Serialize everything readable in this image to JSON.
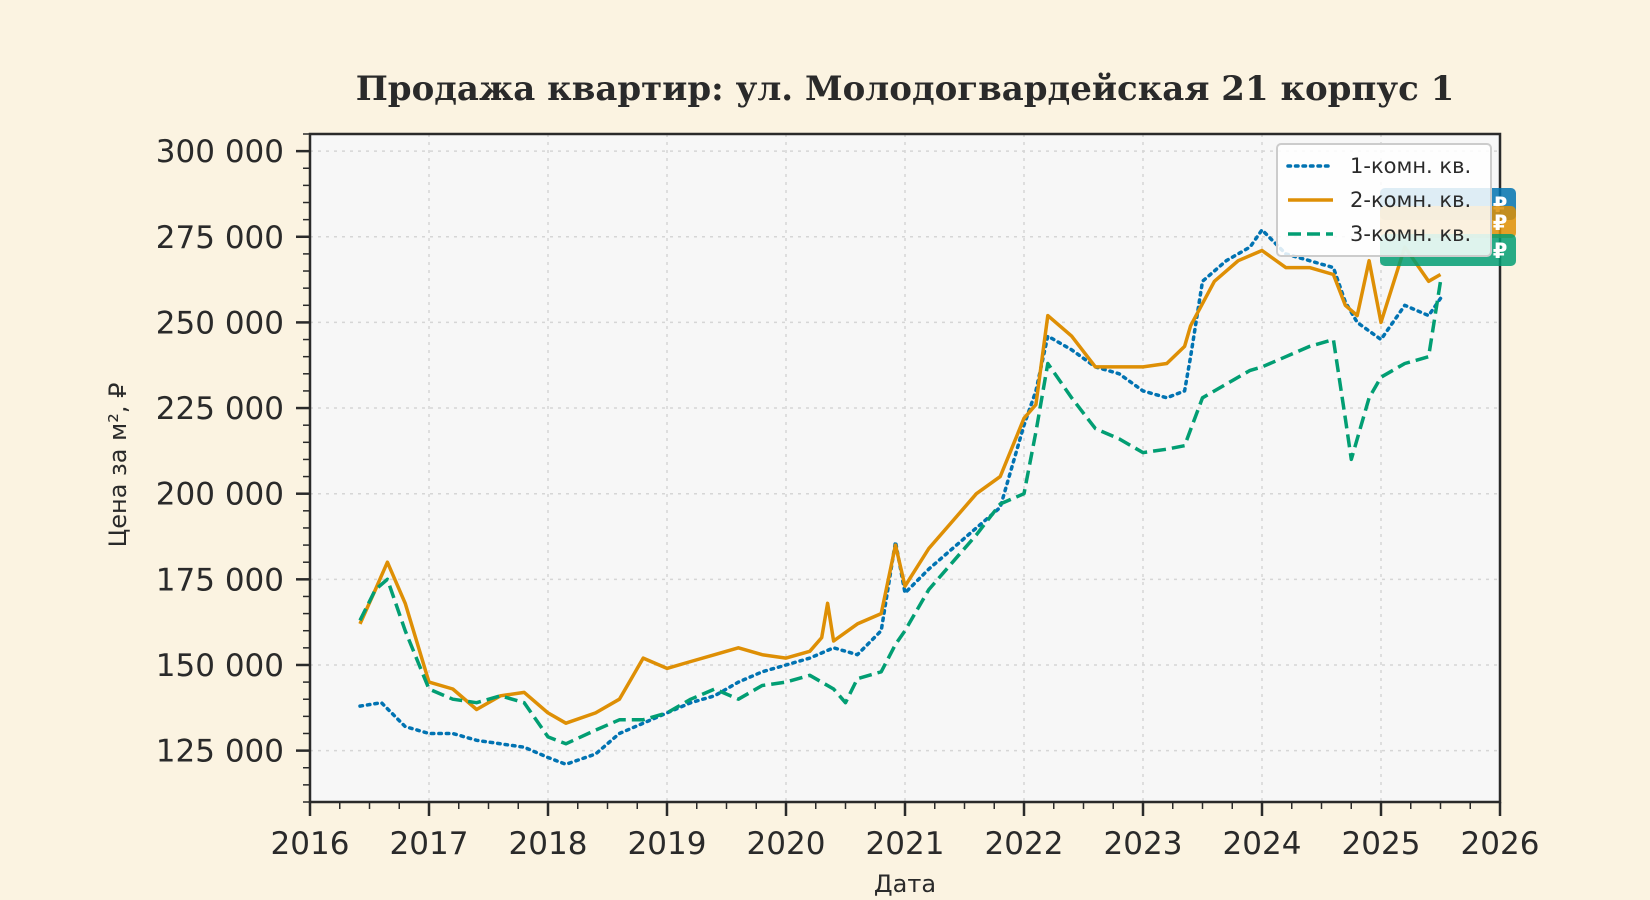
{
  "chart_data": {
    "type": "line",
    "title": "Продажа квартир: ул. Молодогвардейская 21 корпус 1",
    "xlabel": "Дата",
    "ylabel": "Цена за м², ₽",
    "xlim": [
      2016,
      2026
    ],
    "ylim": [
      110000,
      305000
    ],
    "x_ticks": [
      "2016",
      "2017",
      "2018",
      "2019",
      "2020",
      "2021",
      "2022",
      "2023",
      "2024",
      "2025",
      "2026"
    ],
    "y_ticks": [
      {
        "value": 125000,
        "label": "125 000"
      },
      {
        "value": 150000,
        "label": "150 000"
      },
      {
        "value": 175000,
        "label": "175 000"
      },
      {
        "value": 200000,
        "label": "200 000"
      },
      {
        "value": 225000,
        "label": "225 000"
      },
      {
        "value": 250000,
        "label": "250 000"
      },
      {
        "value": 275000,
        "label": "275 000"
      },
      {
        "value": 300000,
        "label": "300 000"
      }
    ],
    "grid": true,
    "legend_position": "top-right",
    "end_marker_symbol": "₽",
    "series": [
      {
        "name": "1-комн. кв.",
        "color": "#0173b2",
        "style": "dotted",
        "x": [
          2016.42,
          2016.6,
          2016.8,
          2017.0,
          2017.2,
          2017.4,
          2017.6,
          2017.8,
          2018.0,
          2018.15,
          2018.4,
          2018.6,
          2018.8,
          2019.0,
          2019.2,
          2019.4,
          2019.6,
          2019.8,
          2020.0,
          2020.2,
          2020.4,
          2020.6,
          2020.8,
          2020.92,
          2021.0,
          2021.2,
          2021.4,
          2021.6,
          2021.8,
          2022.0,
          2022.1,
          2022.2,
          2022.4,
          2022.6,
          2022.8,
          2023.0,
          2023.2,
          2023.35,
          2023.4,
          2023.5,
          2023.7,
          2023.9,
          2024.0,
          2024.2,
          2024.4,
          2024.6,
          2024.7,
          2024.8,
          2025.0,
          2025.2,
          2025.4,
          2025.5
        ],
        "y": [
          138000,
          139000,
          132000,
          130000,
          130000,
          128000,
          127000,
          126000,
          123000,
          121000,
          124000,
          130000,
          133000,
          136000,
          139000,
          141000,
          145000,
          148000,
          150000,
          152000,
          155000,
          153000,
          160000,
          186000,
          171000,
          178000,
          184000,
          190000,
          196000,
          220000,
          230000,
          246000,
          242000,
          237000,
          235000,
          230000,
          228000,
          230000,
          240000,
          262000,
          268000,
          272000,
          277000,
          270000,
          268000,
          266000,
          256000,
          250000,
          245000,
          255000,
          252000,
          257000
        ]
      },
      {
        "name": "2-комн. кв.",
        "color": "#de8f05",
        "style": "solid",
        "x": [
          2016.42,
          2016.55,
          2016.65,
          2016.8,
          2017.0,
          2017.2,
          2017.4,
          2017.6,
          2017.8,
          2018.0,
          2018.15,
          2018.4,
          2018.6,
          2018.7,
          2018.8,
          2019.0,
          2019.2,
          2019.4,
          2019.6,
          2019.8,
          2020.0,
          2020.2,
          2020.3,
          2020.35,
          2020.4,
          2020.6,
          2020.8,
          2020.92,
          2021.0,
          2021.2,
          2021.4,
          2021.6,
          2021.8,
          2022.0,
          2022.1,
          2022.2,
          2022.4,
          2022.6,
          2022.8,
          2023.0,
          2023.2,
          2023.35,
          2023.4,
          2023.6,
          2023.8,
          2024.0,
          2024.2,
          2024.4,
          2024.6,
          2024.7,
          2024.8,
          2024.9,
          2025.0,
          2025.2,
          2025.4,
          2025.5
        ],
        "y": [
          162000,
          172000,
          180000,
          168000,
          145000,
          143000,
          137000,
          141000,
          142000,
          136000,
          133000,
          136000,
          140000,
          146000,
          152000,
          149000,
          151000,
          153000,
          155000,
          153000,
          152000,
          154000,
          158000,
          168000,
          157000,
          162000,
          165000,
          185000,
          173000,
          184000,
          192000,
          200000,
          205000,
          222000,
          226000,
          252000,
          246000,
          237000,
          237000,
          237000,
          238000,
          243000,
          249000,
          262000,
          268000,
          271000,
          266000,
          266000,
          264000,
          255000,
          252000,
          268000,
          250000,
          272000,
          262000,
          264000
        ]
      },
      {
        "name": "3-комн. кв.",
        "color": "#029e73",
        "style": "dashed",
        "x": [
          2016.42,
          2016.55,
          2016.65,
          2016.8,
          2017.0,
          2017.2,
          2017.4,
          2017.6,
          2017.8,
          2018.0,
          2018.15,
          2018.4,
          2018.6,
          2018.8,
          2019.0,
          2019.2,
          2019.4,
          2019.6,
          2019.8,
          2020.0,
          2020.2,
          2020.4,
          2020.5,
          2020.6,
          2020.8,
          2020.92,
          2021.0,
          2021.2,
          2021.4,
          2021.6,
          2021.8,
          2022.0,
          2022.1,
          2022.2,
          2022.4,
          2022.6,
          2022.8,
          2023.0,
          2023.2,
          2023.35,
          2023.5,
          2023.7,
          2023.9,
          2024.0,
          2024.2,
          2024.4,
          2024.6,
          2024.7,
          2024.75,
          2024.9,
          2025.0,
          2025.2,
          2025.4,
          2025.5
        ],
        "y": [
          163000,
          172000,
          175000,
          160000,
          143000,
          140000,
          139000,
          141000,
          139000,
          129000,
          127000,
          131000,
          134000,
          134000,
          136000,
          140000,
          143000,
          140000,
          144000,
          145000,
          147000,
          143000,
          139000,
          146000,
          148000,
          156000,
          160000,
          172000,
          180000,
          188000,
          197000,
          200000,
          218000,
          238000,
          228000,
          219000,
          216000,
          212000,
          213000,
          214000,
          228000,
          232000,
          236000,
          237000,
          240000,
          243000,
          245000,
          222000,
          210000,
          228000,
          234000,
          238000,
          240000,
          262000
        ]
      }
    ]
  }
}
